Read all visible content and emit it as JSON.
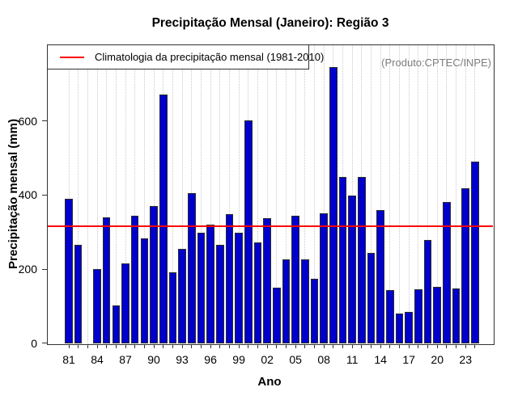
{
  "title": "Precipitação Mensal (Janeiro): Região 3",
  "annotation": "(Produto:CPTEC/INPE)",
  "legend": {
    "label": "Climatologia da precipitação mensal (1981-2010)",
    "position": "top-left"
  },
  "colors": {
    "bar_fill": "#0000cc",
    "bar_border": "#2b2b2b",
    "climatology_line": "#ff0000",
    "grid": "#c9c9c9",
    "frame": "#333333",
    "annotation_text": "#7d7d7d",
    "background": "#ffffff"
  },
  "chart_data": {
    "type": "bar",
    "title": "Precipitação Mensal (Janeiro): Região 3",
    "xlabel": "Ano",
    "ylabel": "Precipitação mensal (mm)",
    "years": [
      1981,
      1982,
      1983,
      1984,
      1985,
      1986,
      1987,
      1988,
      1989,
      1990,
      1991,
      1992,
      1993,
      1994,
      1995,
      1996,
      1997,
      1998,
      1999,
      2000,
      2001,
      2002,
      2003,
      2004,
      2005,
      2006,
      2007,
      2008,
      2009,
      2010,
      2011,
      2012,
      2013,
      2014,
      2015,
      2016,
      2017,
      2018,
      2019,
      2020,
      2021,
      2022,
      2023,
      2024
    ],
    "values": [
      390,
      265,
      0,
      201,
      339,
      101,
      215,
      344,
      283,
      370,
      672,
      192,
      254,
      406,
      298,
      319,
      265,
      348,
      299,
      601,
      273,
      337,
      150,
      226,
      344,
      226,
      175,
      350,
      745,
      448,
      399,
      448,
      244,
      360,
      143,
      80,
      85,
      145,
      279,
      152,
      381,
      148,
      418,
      491
    ],
    "x_tick_labels": [
      "81",
      "84",
      "87",
      "90",
      "93",
      "96",
      "99",
      "02",
      "05",
      "08",
      "11",
      "14",
      "17",
      "20",
      "23"
    ],
    "x_tick_step": 3,
    "y_ticks": [
      0,
      200,
      400,
      600
    ],
    "ylim": [
      0,
      805
    ],
    "climatology": 315,
    "grid": "vertical-dotted",
    "legend_entries": [
      "Climatologia da precipitação mensal (1981-2010)"
    ],
    "legend_position": "top-left"
  }
}
